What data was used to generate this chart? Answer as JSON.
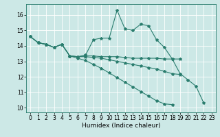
{
  "title": "",
  "xlabel": "Humidex (Indice chaleur)",
  "bg_color": "#cce8e6",
  "grid_color": "#ffffff",
  "line_color": "#2a7d6e",
  "xlim": [
    -0.5,
    23.5
  ],
  "ylim": [
    9.7,
    16.7
  ],
  "xticks": [
    0,
    1,
    2,
    3,
    4,
    5,
    6,
    7,
    8,
    9,
    10,
    11,
    12,
    13,
    14,
    15,
    16,
    17,
    18,
    19,
    20,
    21,
    22,
    23
  ],
  "yticks": [
    10,
    11,
    12,
    13,
    14,
    15,
    16
  ],
  "lines": [
    {
      "x": [
        0,
        1,
        2,
        3,
        4,
        5,
        6,
        7,
        8,
        9,
        10,
        11,
        12,
        13,
        14,
        15,
        16,
        17,
        18,
        19,
        20,
        21,
        22
      ],
      "y": [
        14.6,
        14.2,
        14.1,
        13.9,
        14.1,
        13.35,
        13.3,
        13.4,
        14.4,
        14.5,
        14.5,
        16.3,
        15.1,
        15.0,
        15.4,
        15.3,
        14.4,
        13.9,
        13.15,
        12.2,
        11.8,
        11.4,
        10.3
      ]
    },
    {
      "x": [
        0,
        1,
        2,
        3,
        4,
        5,
        6,
        7,
        8,
        9,
        10,
        11,
        12,
        13,
        14,
        15,
        16,
        17,
        18,
        19
      ],
      "y": [
        14.6,
        14.2,
        14.1,
        13.9,
        14.1,
        13.35,
        13.3,
        13.35,
        13.35,
        13.3,
        13.3,
        13.3,
        13.25,
        13.2,
        13.2,
        13.2,
        13.2,
        13.15,
        13.15,
        13.15
      ]
    },
    {
      "x": [
        0,
        1,
        2,
        3,
        4,
        5,
        6,
        7,
        8,
        9,
        10,
        11,
        12,
        13,
        14,
        15,
        16,
        17,
        18,
        19
      ],
      "y": [
        14.6,
        14.2,
        14.1,
        13.9,
        14.1,
        13.35,
        13.3,
        13.3,
        13.25,
        13.2,
        13.1,
        13.0,
        12.9,
        12.8,
        12.7,
        12.6,
        12.5,
        12.35,
        12.2,
        12.15
      ]
    },
    {
      "x": [
        0,
        1,
        2,
        3,
        4,
        5,
        6,
        7,
        8,
        9,
        10,
        11,
        12,
        13,
        14,
        15,
        16,
        17,
        18
      ],
      "y": [
        14.6,
        14.2,
        14.1,
        13.9,
        14.1,
        13.35,
        13.2,
        13.05,
        12.8,
        12.55,
        12.25,
        11.95,
        11.65,
        11.35,
        11.05,
        10.75,
        10.45,
        10.25,
        10.2
      ]
    }
  ]
}
